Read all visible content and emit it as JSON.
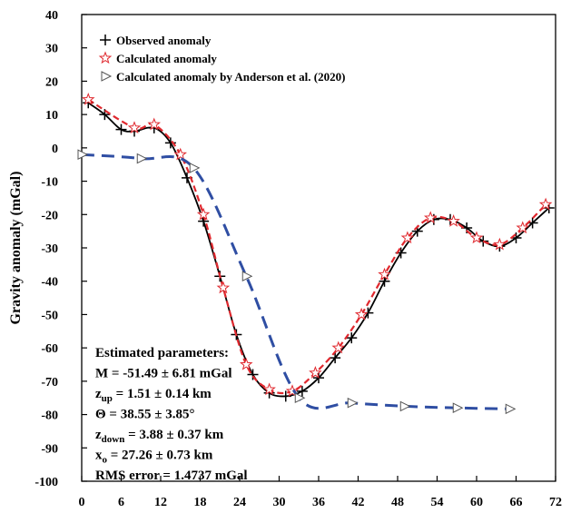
{
  "chart_data": {
    "type": "line",
    "ylabel": "Gravity anomaly (mGal)",
    "xlim": [
      0,
      72
    ],
    "xticks": [
      0,
      6,
      12,
      18,
      24,
      30,
      36,
      42,
      48,
      54,
      60,
      66,
      72
    ],
    "ylim": [
      -100,
      40
    ],
    "yticks": [
      -100,
      -90,
      -80,
      -70,
      -60,
      -50,
      -40,
      -30,
      -20,
      -10,
      0,
      10,
      20,
      30,
      40
    ],
    "legend": "upper left",
    "series": [
      {
        "name": "Observed anomaly",
        "color": "#000000",
        "line": "solid",
        "marker": "plus",
        "x": [
          1,
          3.5,
          6,
          8,
          11,
          13.5,
          16,
          18.5,
          21,
          23.5,
          26,
          28.5,
          31,
          33.5,
          36,
          38.5,
          41,
          43.5,
          46,
          48.5,
          51,
          53.5,
          56,
          58.5,
          61,
          63.5,
          66,
          68.5,
          71
        ],
        "values": [
          13.5,
          10,
          5.5,
          5,
          6,
          1.5,
          -9,
          -22,
          -38.5,
          -56,
          -68,
          -73.5,
          -74.5,
          -73,
          -69,
          -63,
          -57,
          -49.5,
          -40,
          -31.5,
          -25,
          -21.5,
          -21.5,
          -24,
          -28,
          -29.5,
          -27,
          -22.5,
          -18
        ]
      },
      {
        "name": "Calculated anomaly",
        "color": "#e0282e",
        "line": "dashed",
        "marker": "star",
        "x": [
          1,
          8,
          11,
          15,
          18.5,
          21.5,
          25,
          28.5,
          32,
          35.5,
          39,
          42.5,
          46,
          49.5,
          53,
          56.5,
          60,
          63.5,
          67,
          70.5
        ],
        "values": [
          14.5,
          6,
          7,
          -2,
          -20,
          -42,
          -65,
          -72.5,
          -73,
          -67.5,
          -60,
          -50,
          -38,
          -27,
          -21,
          -22,
          -27,
          -29,
          -24,
          -17
        ]
      },
      {
        "name": "Calculated anomaly by Anderson et al. (2020)",
        "color": "#2f4ea3",
        "line": "dashed",
        "marker": "triangle",
        "x": [
          0,
          9,
          17,
          25,
          33,
          41,
          49,
          57,
          65
        ],
        "values": [
          -2,
          -3.2,
          -6,
          -38.5,
          -75,
          -76.5,
          -77.5,
          -78,
          -78.3
        ]
      }
    ],
    "annotation": [
      {
        "text": "Estimated parameters:"
      },
      {
        "text": "M = -51.49 ± 6.81 mGal"
      },
      {
        "base": "z",
        "sub": "up",
        "text": " = 1.51 ± 0.14 km"
      },
      {
        "text": "Θ = 38.55 ± 3.85°"
      },
      {
        "base": "z",
        "sub": "down",
        "text": " = 3.88 ± 0.37 km"
      },
      {
        "base": "x",
        "sub": "o",
        "text": " = 27.26 ± 0.73 km"
      },
      {
        "text": "RMS error = 1.4737 mGal"
      }
    ]
  }
}
